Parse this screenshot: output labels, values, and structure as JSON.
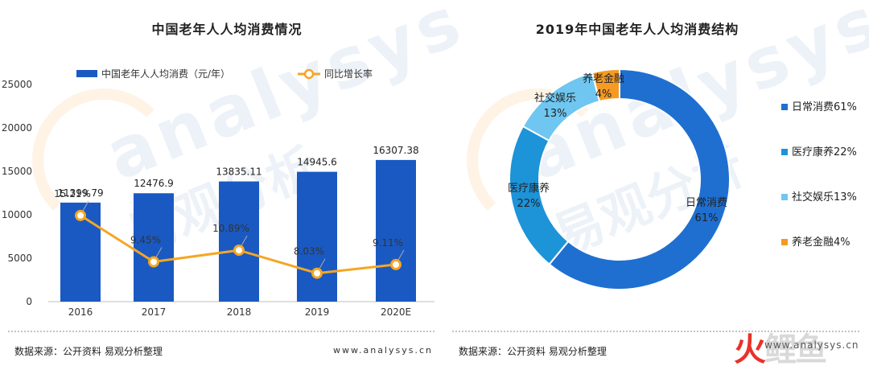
{
  "left_title": "中国老年人人均消费情况",
  "right_title": "2019年中国老年人人均消费结构",
  "left_source": "数据来源：公开资料 易观分析整理",
  "left_website": "www.analysys.cn",
  "right_source": "数据来源：公开资料 易观分析整理",
  "watermark": {
    "en": "analysys",
    "cn": "易观分析"
  },
  "bottom_logo": {
    "part1": "火",
    "part2": "鲤鱼",
    "url": "www.analysys.cn"
  },
  "colors": {
    "bar": "#1a59c2",
    "line": "#f5a623",
    "pie": [
      "#1f6fd0",
      "#1d93d8",
      "#6fc6f0",
      "#f59a23"
    ]
  },
  "chart_data": [
    {
      "type": "bar",
      "title": "中国老年人人均消费情况",
      "categories": [
        "2016",
        "2017",
        "2018",
        "2019",
        "2020E"
      ],
      "ylim": [
        0,
        25000
      ],
      "yticks": [
        0,
        5000,
        10000,
        15000,
        20000,
        25000
      ],
      "legend_position": "top",
      "series": [
        {
          "name": "中国老年人人均消费（元/年）",
          "type": "bar",
          "values": [
            11399.79,
            12476.9,
            13835.11,
            14945.6,
            16307.38
          ],
          "labels": [
            "11399.79",
            "12476.9",
            "13835.11",
            "14945.6",
            "16307.38"
          ]
        },
        {
          "name": "同比增长率",
          "type": "line",
          "values": [
            15.21,
            9.45,
            10.89,
            8.03,
            9.11
          ],
          "labels": [
            "15.21%",
            "9.45%",
            "10.89%",
            "8.03%",
            "9.11%"
          ]
        }
      ]
    },
    {
      "type": "pie",
      "title": "2019年中国老年人人均消费结构",
      "legend_position": "right",
      "slices": [
        {
          "name": "日常消费",
          "value": 61,
          "label": "日常消费\n61%",
          "legend": "日常消费61%"
        },
        {
          "name": "医疗康养",
          "value": 22,
          "label": "医疗康养\n22%",
          "legend": "医疗康养22%"
        },
        {
          "name": "社交娱乐",
          "value": 13,
          "label": "社交娱乐\n13%",
          "legend": "社交娱乐13%"
        },
        {
          "name": "养老金融",
          "value": 4,
          "label": "养老金融\n4%",
          "legend": "养老金融4%"
        }
      ]
    }
  ]
}
